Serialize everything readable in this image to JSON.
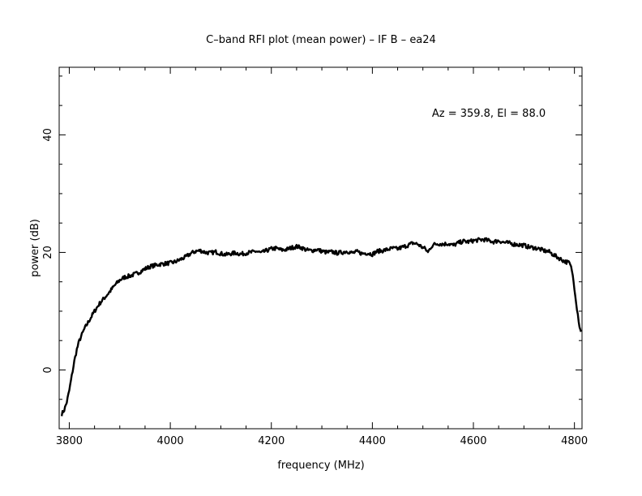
{
  "chart_data": {
    "type": "line",
    "title": "C–band RFI plot (mean power) – IF B – ea24",
    "xlabel": "frequency (MHz)",
    "ylabel": "power (dB)",
    "annotation": "Az = 359.8, El = 88.0",
    "xlim": [
      3780,
      4815
    ],
    "ylim": [
      -10,
      51.5
    ],
    "x_ticks": [
      3800,
      4000,
      4200,
      4400,
      4600,
      4800
    ],
    "x_tick_labels": [
      "3800",
      "4000",
      "4200",
      "4400",
      "4600",
      "4800"
    ],
    "y_ticks": [
      0,
      20,
      40
    ],
    "y_tick_labels": [
      "0",
      "20",
      "40"
    ],
    "grid": false,
    "line_color": "#000000",
    "series": [
      {
        "x": [
          3785,
          3790,
          3795,
          3800,
          3805,
          3810,
          3815,
          3820,
          3825,
          3830,
          3840,
          3850,
          3860,
          3870,
          3880,
          3890,
          3900,
          3910,
          3920,
          3930,
          3940,
          3950,
          3960,
          3970,
          3980,
          3990,
          4000,
          4010,
          4020,
          4030,
          4040,
          4050,
          4060,
          4070,
          4080,
          4090,
          4100,
          4110,
          4120,
          4130,
          4140,
          4150,
          4160,
          4170,
          4180,
          4190,
          4200,
          4210,
          4220,
          4230,
          4240,
          4250,
          4260,
          4270,
          4280,
          4290,
          4300,
          4310,
          4320,
          4330,
          4340,
          4350,
          4360,
          4370,
          4380,
          4390,
          4400,
          4410,
          4420,
          4430,
          4440,
          4450,
          4460,
          4470,
          4480,
          4490,
          4500,
          4505,
          4510,
          4515,
          4520,
          4530,
          4540,
          4550,
          4560,
          4570,
          4580,
          4590,
          4600,
          4610,
          4620,
          4630,
          4640,
          4650,
          4660,
          4670,
          4680,
          4690,
          4700,
          4710,
          4720,
          4730,
          4740,
          4750,
          4760,
          4770,
          4780,
          4790,
          4795,
          4800,
          4805,
          4810,
          4813
        ],
        "y": [
          -7.5,
          -6.8,
          -5.5,
          -3.5,
          -1.0,
          1.5,
          3.5,
          5.0,
          6.0,
          7.0,
          8.5,
          10.0,
          11.3,
          12.3,
          13.3,
          14.4,
          15.3,
          15.8,
          16.0,
          16.3,
          16.7,
          17.2,
          17.6,
          17.8,
          18.0,
          18.1,
          18.2,
          18.4,
          18.8,
          19.2,
          19.8,
          20.2,
          20.3,
          20.0,
          19.9,
          20.1,
          19.8,
          19.6,
          19.8,
          19.9,
          19.7,
          19.9,
          20.0,
          20.2,
          19.9,
          20.3,
          20.6,
          20.7,
          20.4,
          20.5,
          20.8,
          21.0,
          20.8,
          20.4,
          20.3,
          20.5,
          20.2,
          20.0,
          20.1,
          19.9,
          20.0,
          20.2,
          19.9,
          20.1,
          19.8,
          19.9,
          19.7,
          20.2,
          20.3,
          20.5,
          20.7,
          20.6,
          20.9,
          21.2,
          21.6,
          21.4,
          20.8,
          20.6,
          20.0,
          20.8,
          21.3,
          21.5,
          21.4,
          21.5,
          21.2,
          21.6,
          21.9,
          21.8,
          22.0,
          22.1,
          22.2,
          22.0,
          21.8,
          22.0,
          21.7,
          21.6,
          21.4,
          21.3,
          21.2,
          20.9,
          20.8,
          20.6,
          20.3,
          20.1,
          19.5,
          19.0,
          18.5,
          18.2,
          17.0,
          14.0,
          10.5,
          7.5,
          6.5
        ]
      }
    ]
  }
}
